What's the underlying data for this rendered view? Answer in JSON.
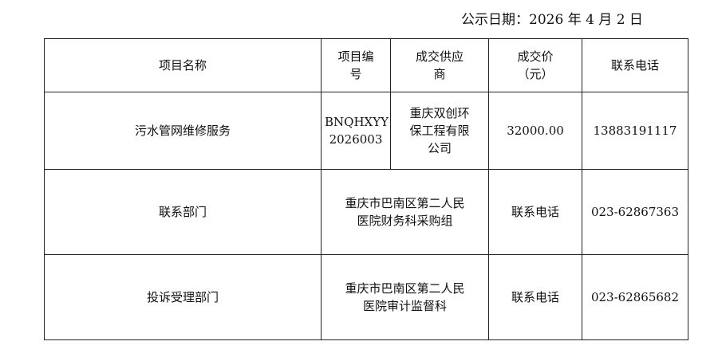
{
  "publish_date": "公示日期：2026 年 4 月 2 日",
  "table": {
    "headers": [
      "项目名称",
      "项目编号",
      "成交供应商",
      "成交价（元）",
      "联系电话"
    ],
    "header_lines": {
      "project_no": [
        "项目编",
        "号"
      ],
      "supplier": [
        "成交供应",
        "商"
      ],
      "price": [
        "成交价",
        "（元）"
      ]
    },
    "row1": {
      "project_name": "污水管网维修服务",
      "project_no_lines": [
        "BNQHXYY",
        "2026003"
      ],
      "supplier_lines": [
        "重庆双创环",
        "保工程有限",
        "公司"
      ],
      "price": "32000.00",
      "phone": "13883191117"
    },
    "row2": {
      "label": "联系部门",
      "department_lines": [
        "重庆市巴南区第二人民",
        "医院财务科采购组"
      ],
      "phone_label": "联系电话",
      "phone": "023-62867363"
    },
    "row3": {
      "label": "投诉受理部门",
      "department_lines": [
        "重庆市巴南区第二人民",
        "医院审计监督科"
      ],
      "phone_label": "联系电话",
      "phone": "023-62865682"
    }
  }
}
